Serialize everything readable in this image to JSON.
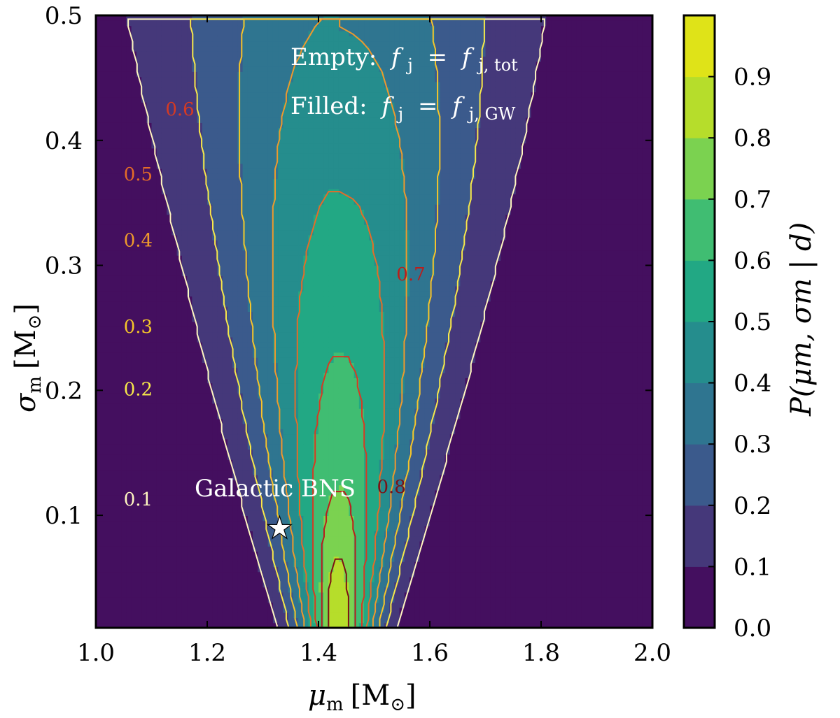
{
  "chart_data": {
    "type": "heatmap",
    "subtype": "filled-contour-with-line-contours",
    "xlabel_symbol": "μ",
    "xlabel_sub": "m",
    "xlabel_unit": "[M",
    "xlabel_unit_sub": "⊙",
    "xlabel_unit_close": "]",
    "ylabel_symbol": "σ",
    "ylabel_sub": "m",
    "ylabel_unit": "[M",
    "ylabel_unit_sub": "⊙",
    "ylabel_unit_close": "]",
    "xlim": [
      1.0,
      2.0
    ],
    "ylim": [
      0.01,
      0.5
    ],
    "x_ticks": [
      1.0,
      1.2,
      1.4,
      1.6,
      1.8,
      2.0
    ],
    "x_tick_labels": [
      "1.0",
      "1.2",
      "1.4",
      "1.6",
      "1.8",
      "2.0"
    ],
    "y_ticks": [
      0.1,
      0.2,
      0.3,
      0.4,
      0.5
    ],
    "y_tick_labels": [
      "0.1",
      "0.2",
      "0.3",
      "0.4",
      "0.5"
    ],
    "colorbar": {
      "label": "P(μm, σm | d)",
      "levels": [
        0.0,
        0.1,
        0.2,
        0.3,
        0.4,
        0.5,
        0.6,
        0.7,
        0.8,
        0.9
      ],
      "tick_labels": [
        "0.0",
        "0.1",
        "0.2",
        "0.3",
        "0.4",
        "0.5",
        "0.6",
        "0.7",
        "0.8",
        "0.9"
      ],
      "colors": [
        "#440f5f",
        "#45387a",
        "#3b5a8c",
        "#2f7590",
        "#258d8d",
        "#22a884",
        "#40bd72",
        "#7bd250",
        "#b6dd2b",
        "#dfe318"
      ]
    },
    "line_contours": [
      {
        "level": 0.1,
        "label": "0.1",
        "color": "#fff6c0"
      },
      {
        "level": 0.2,
        "label": "0.2",
        "color": "#f7e84a"
      },
      {
        "level": 0.3,
        "label": "0.3",
        "color": "#f5c52a"
      },
      {
        "level": 0.4,
        "label": "0.4",
        "color": "#ee9a2c"
      },
      {
        "level": 0.5,
        "label": "0.5",
        "color": "#e46c28"
      },
      {
        "level": 0.6,
        "label": "0.6",
        "color": "#d63a22"
      },
      {
        "level": 0.7,
        "label": "0.7",
        "color": "#bb1d1b"
      },
      {
        "level": 0.8,
        "label": "0.8",
        "color": "#7c1015"
      }
    ],
    "annotations": {
      "empty_label": "Empty:",
      "filled_label": "Filled:",
      "f_symbol": "f",
      "j_sub": "j",
      "equals": "=",
      "tot_sub": "j, tot",
      "gw_sub": "j, GW",
      "marker_label": "Galactic BNS",
      "marker": {
        "x": 1.33,
        "y": 0.09,
        "symbol": "★"
      }
    }
  }
}
